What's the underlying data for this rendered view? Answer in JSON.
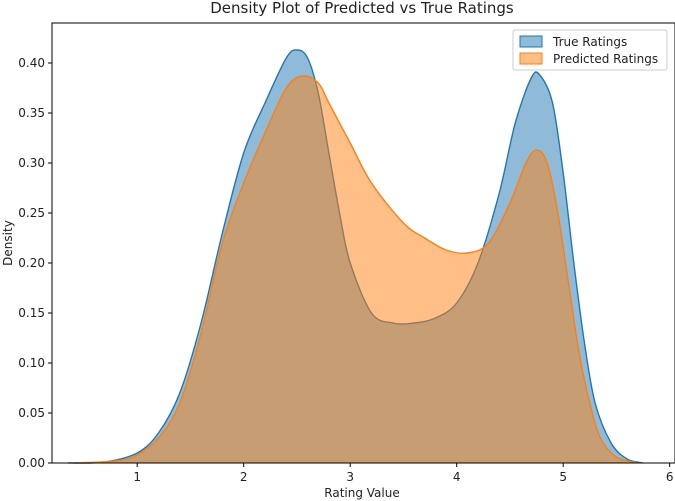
{
  "chart_data": {
    "type": "area",
    "title": "Density Plot of Predicted vs True Ratings",
    "xlabel": "Rating Value",
    "ylabel": "Density",
    "xlim": [
      0.2,
      6.05
    ],
    "ylim": [
      0,
      0.44
    ],
    "x_ticks": [
      1,
      2,
      3,
      4,
      5,
      6
    ],
    "x_tick_labels": [
      "1",
      "2",
      "3",
      "4",
      "5",
      "6"
    ],
    "y_ticks": [
      0,
      0.05,
      0.1,
      0.15,
      0.2,
      0.25,
      0.3,
      0.35,
      0.4
    ],
    "y_tick_labels": [
      "0.00",
      "0.05",
      "0.10",
      "0.15",
      "0.20",
      "0.25",
      "0.30",
      "0.35",
      "0.40"
    ],
    "grid": false,
    "legend_position": "top-right",
    "series": [
      {
        "name": "True Ratings",
        "color": "#1f77b4",
        "points": [
          [
            0.35,
            0.0
          ],
          [
            0.7,
            0.001
          ],
          [
            1.0,
            0.01
          ],
          [
            1.2,
            0.03
          ],
          [
            1.4,
            0.07
          ],
          [
            1.6,
            0.14
          ],
          [
            1.8,
            0.23
          ],
          [
            2.0,
            0.31
          ],
          [
            2.2,
            0.36
          ],
          [
            2.4,
            0.405
          ],
          [
            2.5,
            0.413
          ],
          [
            2.6,
            0.405
          ],
          [
            2.7,
            0.37
          ],
          [
            2.8,
            0.31
          ],
          [
            2.9,
            0.25
          ],
          [
            3.0,
            0.2
          ],
          [
            3.2,
            0.15
          ],
          [
            3.4,
            0.14
          ],
          [
            3.6,
            0.14
          ],
          [
            3.8,
            0.145
          ],
          [
            4.0,
            0.16
          ],
          [
            4.2,
            0.2
          ],
          [
            4.4,
            0.27
          ],
          [
            4.55,
            0.34
          ],
          [
            4.7,
            0.385
          ],
          [
            4.78,
            0.388
          ],
          [
            4.9,
            0.36
          ],
          [
            5.0,
            0.29
          ],
          [
            5.1,
            0.2
          ],
          [
            5.2,
            0.12
          ],
          [
            5.3,
            0.06
          ],
          [
            5.45,
            0.02
          ],
          [
            5.6,
            0.004
          ],
          [
            5.75,
            0.0
          ]
        ]
      },
      {
        "name": "Predicted Ratings",
        "color": "#ff7f0e",
        "points": [
          [
            0.4,
            0.0
          ],
          [
            0.8,
            0.002
          ],
          [
            1.0,
            0.008
          ],
          [
            1.2,
            0.025
          ],
          [
            1.4,
            0.06
          ],
          [
            1.6,
            0.13
          ],
          [
            1.8,
            0.22
          ],
          [
            2.0,
            0.28
          ],
          [
            2.2,
            0.33
          ],
          [
            2.4,
            0.375
          ],
          [
            2.55,
            0.387
          ],
          [
            2.7,
            0.38
          ],
          [
            2.8,
            0.36
          ],
          [
            3.0,
            0.32
          ],
          [
            3.2,
            0.28
          ],
          [
            3.5,
            0.24
          ],
          [
            3.7,
            0.225
          ],
          [
            3.9,
            0.213
          ],
          [
            4.1,
            0.21
          ],
          [
            4.3,
            0.22
          ],
          [
            4.5,
            0.26
          ],
          [
            4.65,
            0.3
          ],
          [
            4.75,
            0.313
          ],
          [
            4.85,
            0.3
          ],
          [
            4.95,
            0.25
          ],
          [
            5.05,
            0.18
          ],
          [
            5.15,
            0.11
          ],
          [
            5.25,
            0.06
          ],
          [
            5.35,
            0.025
          ],
          [
            5.5,
            0.006
          ],
          [
            5.7,
            0.0
          ]
        ]
      }
    ]
  }
}
